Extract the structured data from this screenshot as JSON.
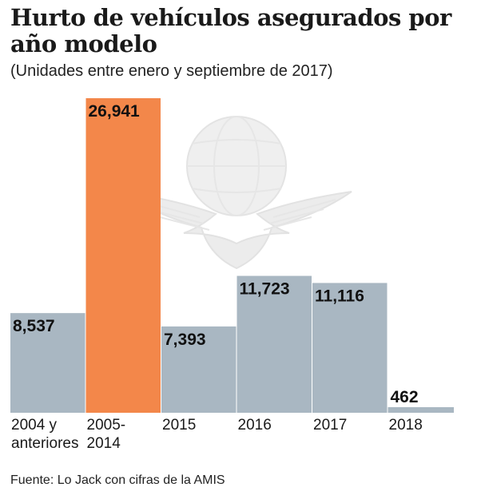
{
  "chart_data": {
    "type": "bar",
    "title": "Hurto de vehículos asegurados por año modelo",
    "subtitle": "(Unidades entre enero y septiembre de 2017)",
    "categories": [
      [
        "2004 y",
        "anteriores"
      ],
      [
        "2005-",
        "2014"
      ],
      [
        "2015"
      ],
      [
        "2016"
      ],
      [
        "2017"
      ],
      [
        "2018"
      ]
    ],
    "values": [
      8537,
      26941,
      7393,
      11723,
      11116,
      462
    ],
    "value_labels": [
      "8,537",
      "26,941",
      "7,393",
      "11,723",
      "11,116",
      "462"
    ],
    "highlight_index": 1,
    "ylim": [
      0,
      26941
    ],
    "grid": false,
    "colors": {
      "bar": "#a9b7c2",
      "highlight": "#f3874a",
      "watermark": "#e8e8e8"
    }
  },
  "source": "Fuente: Lo Jack con cifras de la AMIS"
}
